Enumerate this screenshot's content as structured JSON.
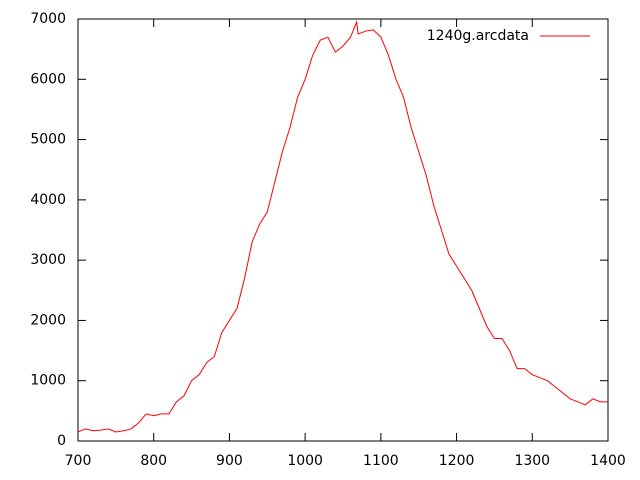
{
  "chart_data": {
    "type": "line",
    "x": [
      700,
      710,
      720,
      730,
      740,
      750,
      760,
      770,
      780,
      790,
      800,
      810,
      820,
      830,
      840,
      850,
      860,
      870,
      880,
      890,
      900,
      910,
      920,
      930,
      940,
      950,
      960,
      970,
      980,
      990,
      1000,
      1010,
      1020,
      1030,
      1040,
      1050,
      1060,
      1068,
      1070,
      1080,
      1090,
      1100,
      1110,
      1120,
      1130,
      1140,
      1150,
      1160,
      1170,
      1180,
      1190,
      1200,
      1210,
      1220,
      1230,
      1240,
      1250,
      1260,
      1270,
      1280,
      1290,
      1300,
      1310,
      1320,
      1330,
      1340,
      1350,
      1360,
      1370,
      1380,
      1390,
      1400
    ],
    "series": [
      {
        "name": "1240g.arcdata",
        "color": "#ff0000",
        "values": [
          150,
          200,
          170,
          180,
          200,
          150,
          170,
          200,
          300,
          450,
          420,
          450,
          450,
          650,
          750,
          1000,
          1100,
          1300,
          1400,
          1800,
          2000,
          2200,
          2700,
          3300,
          3600,
          3800,
          4300,
          4800,
          5200,
          5700,
          6000,
          6400,
          6650,
          6700,
          6450,
          6550,
          6700,
          6950,
          6750,
          6800,
          6820,
          6700,
          6400,
          6000,
          5700,
          5200,
          4800,
          4400,
          3900,
          3500,
          3100,
          2900,
          2700,
          2500,
          2200,
          1900,
          1700,
          1700,
          1500,
          1200,
          1200,
          1100,
          1050,
          1000,
          900,
          800,
          700,
          650,
          600,
          700,
          650,
          650
        ]
      }
    ],
    "xlim": [
      700,
      1400
    ],
    "ylim": [
      0,
      7000
    ],
    "xticks": [
      700,
      800,
      900,
      1000,
      1100,
      1200,
      1300,
      1400
    ],
    "yticks": [
      0,
      1000,
      2000,
      3000,
      4000,
      5000,
      6000,
      7000
    ],
    "legend": "top-right",
    "grid": false
  }
}
